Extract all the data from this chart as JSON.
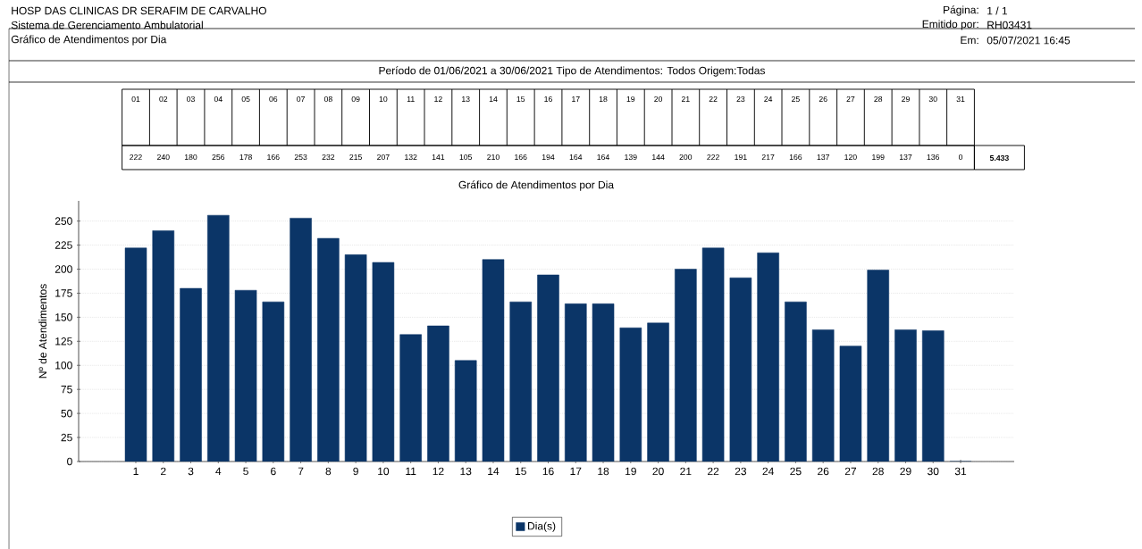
{
  "chart_data": {
    "type": "bar",
    "title": "Gráfico de Atendimentos por Dia",
    "subtitle": "Período de 01/06/2021 a 30/06/2021    Tipo de Atendimentos: Todos    Origem:Todas",
    "ylabel": "Nº de Atendimentos",
    "categories": [
      "1",
      "2",
      "3",
      "4",
      "5",
      "6",
      "7",
      "8",
      "9",
      "10",
      "11",
      "12",
      "13",
      "14",
      "15",
      "16",
      "17",
      "18",
      "19",
      "20",
      "21",
      "22",
      "23",
      "24",
      "25",
      "26",
      "27",
      "28",
      "29",
      "30",
      "31"
    ],
    "series": [
      {
        "name": "Dia(s)",
        "color": "#0b3567",
        "values": [
          222,
          240,
          180,
          256,
          178,
          166,
          253,
          232,
          215,
          207,
          132,
          141,
          105,
          210,
          166,
          194,
          164,
          164,
          139,
          144,
          200,
          222,
          191,
          217,
          166,
          137,
          120,
          199,
          137,
          136,
          0
        ]
      }
    ],
    "ylim": [
      0,
      271
    ],
    "yticks": [
      0,
      25,
      50,
      75,
      100,
      125,
      150,
      175,
      200,
      225,
      250
    ],
    "grid": "y",
    "legend": "bottom",
    "data_labels": true,
    "annotations": [
      "HOSP DAS CLINICAS DR SERAFIM DE CARVALHO",
      "Sistema de Gerenciamento Ambulatorial",
      "Gráfico de Atendimentos por Dia",
      "Página:",
      "1  / 1",
      "Emitido por:",
      "RH03431",
      "Em:",
      "05/07/2021 16:45",
      "01",
      "02",
      "03",
      "04",
      "05",
      "06",
      "07",
      "08",
      "09",
      "10",
      "11",
      "12",
      "13",
      "14",
      "15",
      "16",
      "17",
      "18",
      "19",
      "20",
      "21",
      "22",
      "23",
      "24",
      "25",
      "26",
      "27",
      "28",
      "29",
      "30",
      "31",
      "5.433"
    ]
  }
}
